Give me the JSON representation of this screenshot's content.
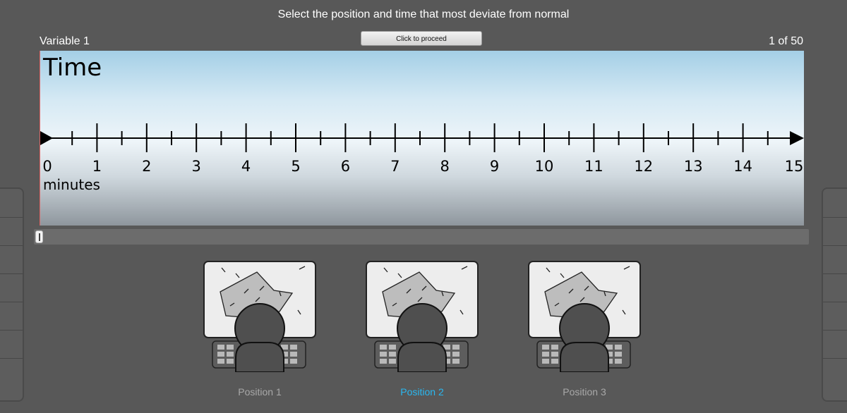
{
  "header": {
    "instruction": "Select the position and time that most deviate from normal",
    "variable_label": "Variable 1",
    "counter": "1 of 50",
    "proceed_label": "Click to proceed"
  },
  "timeline": {
    "title": "Time",
    "units": "minutes",
    "ticks": [
      "0",
      "1",
      "2",
      "3",
      "4",
      "5",
      "6",
      "7",
      "8",
      "9",
      "10",
      "11",
      "12",
      "13",
      "14",
      "15"
    ],
    "min": 0,
    "max": 15
  },
  "scrubber": {
    "value_minutes": 0
  },
  "positions": [
    {
      "label": "Position 1",
      "selected": false
    },
    {
      "label": "Position 2",
      "selected": true
    },
    {
      "label": "Position 3",
      "selected": false
    }
  ],
  "colors": {
    "selected_label": "#29b7f0",
    "unselected_label": "#a8a8a8",
    "background": "#585858"
  }
}
